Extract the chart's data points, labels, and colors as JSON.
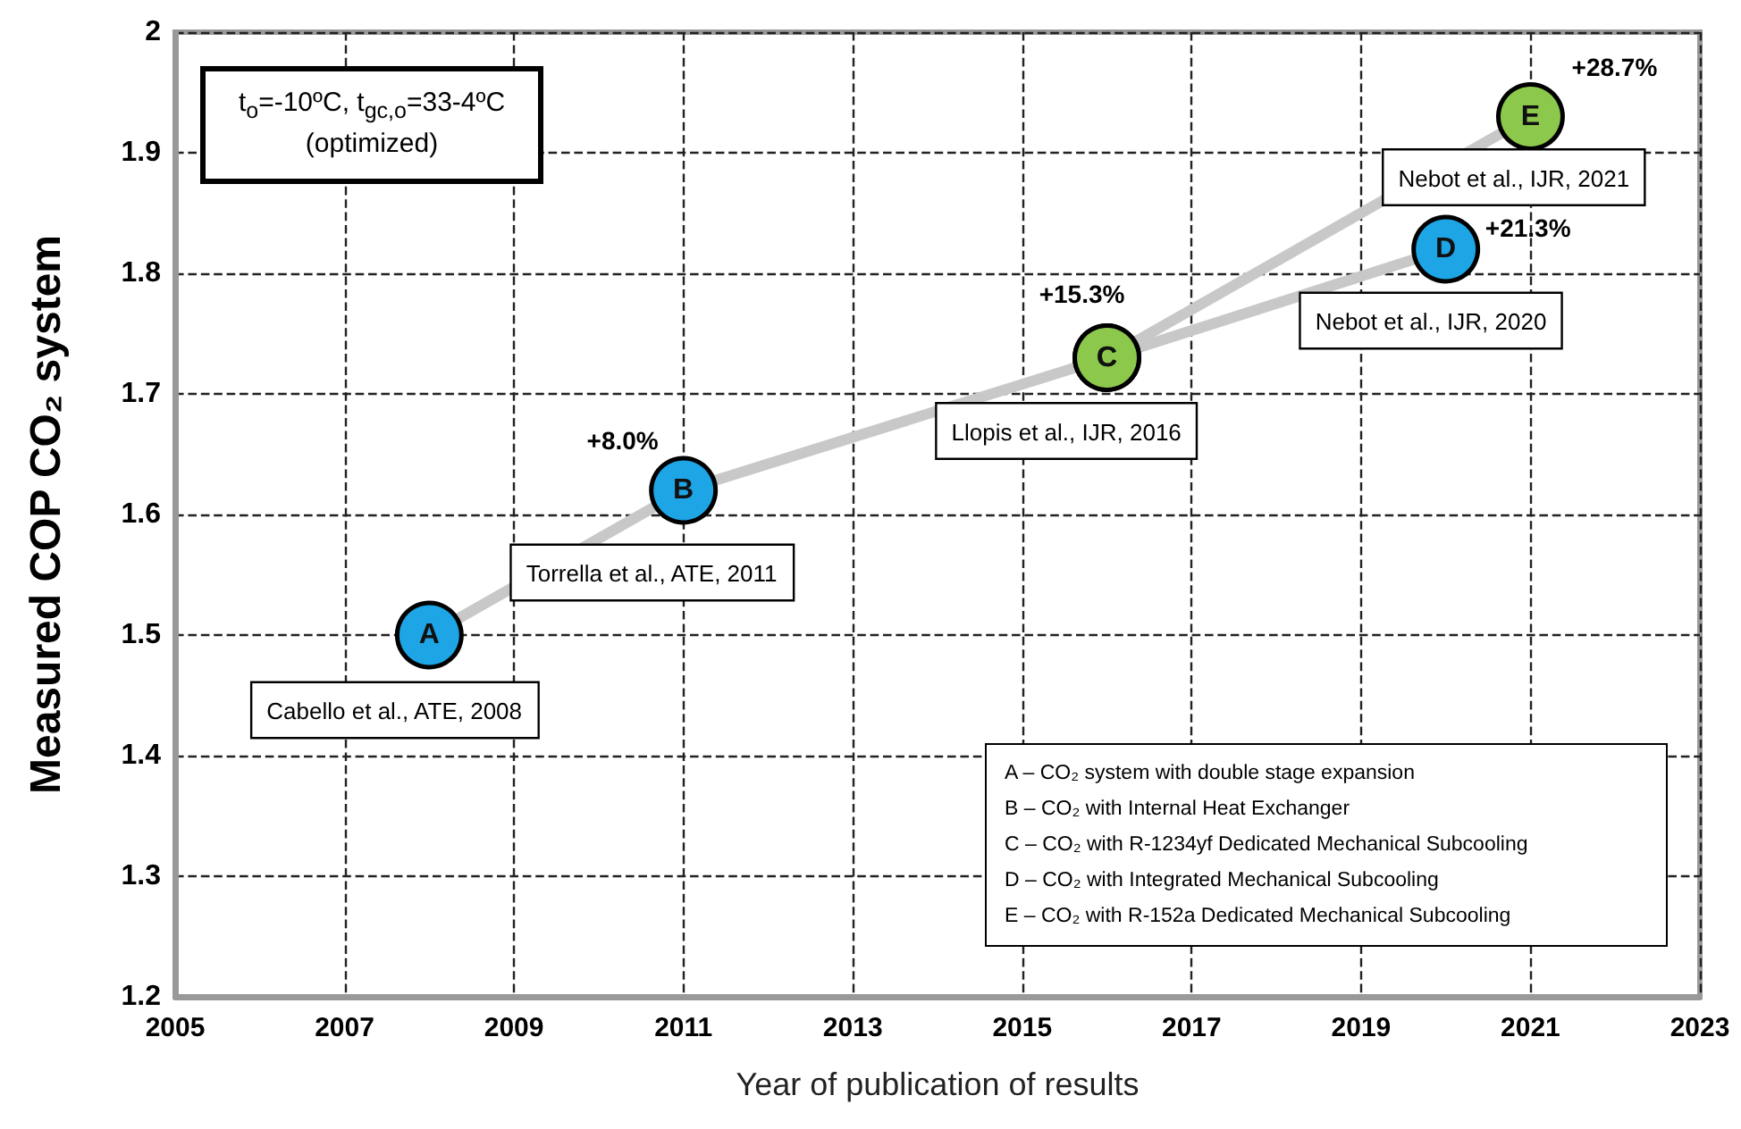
{
  "chart_data": {
    "type": "line",
    "xlabel": "Year of publication of results",
    "ylabel": "Measured COP CO₂ system",
    "xlim": [
      2005,
      2023
    ],
    "xticks": [
      2005,
      2007,
      2009,
      2011,
      2013,
      2015,
      2017,
      2019,
      2021,
      2023
    ],
    "ylim": [
      1.2,
      2
    ],
    "yticks": [
      1.2,
      1.3,
      1.4,
      1.5,
      1.6,
      1.7,
      1.8,
      1.9,
      2
    ],
    "grid": true,
    "series": [
      {
        "marker": "circle",
        "color": "#c8c8c8",
        "x": [
          2008,
          2011,
          2016,
          2020
        ],
        "values": [
          1.5,
          1.62,
          1.73,
          1.82
        ],
        "colors": [
          "#1ea5e6",
          "#1ea5e6",
          "#8cc84b",
          "#1ea5e6"
        ]
      },
      {
        "marker": "circle",
        "color": "#c8c8c8",
        "x": [
          2016,
          2021
        ],
        "values": [
          1.73,
          1.93
        ],
        "colors": [
          "#8cc84b",
          "#8cc84b"
        ]
      }
    ],
    "annotations": [
      "t$_{o}$=-10ºC, t$_{gc,o}$=33-4ºC (optimized)",
      {
        "text": "A",
        "x": 2008,
        "y": 1.5
      },
      {
        "text": "B",
        "x": 2011,
        "y": 1.62
      },
      {
        "text": "C",
        "x": 2016,
        "y": 1.73
      },
      {
        "text": "D",
        "x": 2020,
        "y": 1.82
      },
      {
        "text": "E",
        "x": 2021,
        "y": 1.93
      },
      {
        "text": "+8.0%",
        "x": 2011,
        "y": 1.62
      },
      {
        "text": "+15.3%",
        "x": 2016,
        "y": 1.73
      },
      {
        "text": "+21.3%",
        "x": 2020,
        "y": 1.82
      },
      {
        "text": "+28.7%",
        "x": 2021,
        "y": 1.93
      },
      {
        "text": "Cabello et al., ATE, 2008",
        "x": 2008,
        "y": 1.5
      },
      {
        "text": "Torrella et al., ATE, 2011",
        "x": 2011,
        "y": 1.62
      },
      {
        "text": "Llopis et al., IJR, 2016",
        "x": 2016,
        "y": 1.73
      },
      {
        "text": "Nebot et al., IJR, 2020",
        "x": 2020,
        "y": 1.82
      },
      {
        "text": "Nebot et al., IJR, 2021",
        "x": 2021,
        "y": 1.93
      },
      "A – CO₂ system with double stage expansion",
      "B – CO₂ with Internal Heat Exchanger",
      "C – CO₂ with R-1234yf Dedicated Mechanical Subcooling",
      "D – CO₂ with Integrated Mechanical Subcooling",
      "E – CO₂ with R-152a Dedicated Mechanical Subcooling"
    ]
  }
}
